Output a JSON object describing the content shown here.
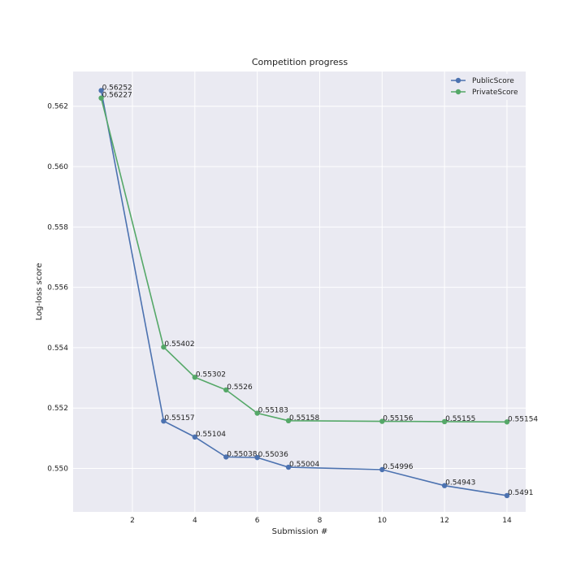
{
  "chart_data": {
    "type": "line",
    "title": "Competition progress",
    "xlabel": "Submission #",
    "ylabel": "Log-loss score",
    "xlim": [
      0.1,
      14.6
    ],
    "ylim": [
      0.54856,
      0.56315
    ],
    "xticks": [
      2,
      4,
      6,
      8,
      10,
      12,
      14
    ],
    "yticks": [
      0.55,
      0.552,
      0.554,
      0.556,
      0.558,
      0.56,
      0.562
    ],
    "ytick_labels": [
      "0.550",
      "0.552",
      "0.554",
      "0.556",
      "0.558",
      "0.560",
      "0.562"
    ],
    "grid": true,
    "legend_position": "top-right",
    "background": "#eaeaf2",
    "x": [
      1,
      3,
      4,
      5,
      6,
      7,
      10,
      12,
      14
    ],
    "series": [
      {
        "name": "PublicScore",
        "color": "#4c72b0",
        "values": [
          0.56252,
          0.55157,
          0.55104,
          0.55038,
          0.55036,
          0.55004,
          0.54996,
          0.54943,
          0.5491
        ],
        "labels": [
          "0.56252",
          "0.55157",
          "0.55104",
          "0.55038",
          "0.55036",
          "0.55004",
          "0.54996",
          "0.54943",
          "0.5491"
        ]
      },
      {
        "name": "PrivateScore",
        "color": "#55a868",
        "values": [
          0.56227,
          0.55402,
          0.55302,
          0.5526,
          0.55183,
          0.55158,
          0.55156,
          0.55155,
          0.55154
        ],
        "labels": [
          "0.56227",
          "0.55402",
          "0.55302",
          "0.5526",
          "0.55183",
          "0.55158",
          "0.55156",
          "0.55155",
          "0.55154"
        ]
      }
    ]
  }
}
